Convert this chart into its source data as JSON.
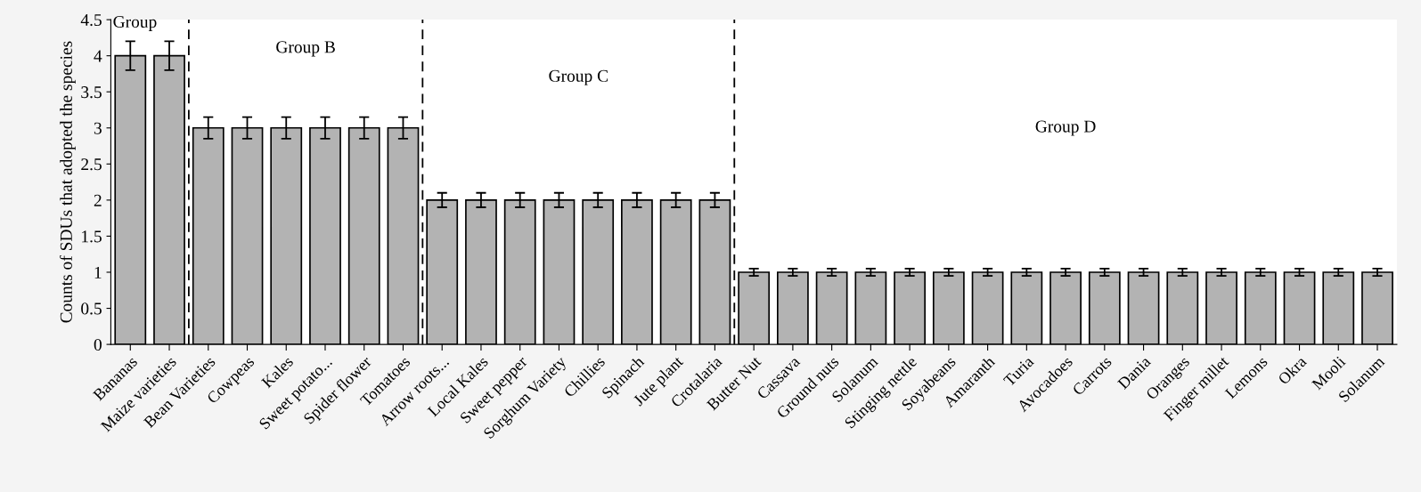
{
  "chart_data": {
    "type": "bar",
    "ylabel": "Counts of SDUs that adopted the species",
    "categories": [
      "Bananas",
      "Maize varieties",
      "Bean Varieties",
      "Cowpeas",
      "Kales",
      "Sweet potato...",
      "Spider flower",
      "Tomatoes",
      "Arrow roots...",
      "Local Kales",
      "Sweet pepper",
      "Sorghum Variety",
      "Chillies",
      "Spinach",
      "Jute plant",
      "Crotalaria",
      "Butter Nut",
      "Cassava",
      "Ground nuts",
      "Solanum",
      "Stinging nettle",
      "Soyabeans",
      "Amaranth",
      "Turia",
      "Avocadoes",
      "Carrots",
      "Dania",
      "Oranges",
      "Finger millet",
      "Lemons",
      "Okra",
      "Mooli",
      "Solanum"
    ],
    "values": [
      4,
      4,
      3,
      3,
      3,
      3,
      3,
      3,
      2,
      2,
      2,
      2,
      2,
      2,
      2,
      2,
      1,
      1,
      1,
      1,
      1,
      1,
      1,
      1,
      1,
      1,
      1,
      1,
      1,
      1,
      1,
      1,
      1
    ],
    "errors": [
      0.2,
      0.2,
      0.15,
      0.15,
      0.15,
      0.15,
      0.15,
      0.15,
      0.1,
      0.1,
      0.1,
      0.1,
      0.1,
      0.1,
      0.1,
      0.1,
      0.05,
      0.05,
      0.05,
      0.05,
      0.05,
      0.05,
      0.05,
      0.05,
      0.05,
      0.05,
      0.05,
      0.05,
      0.05,
      0.05,
      0.05,
      0.05,
      0.05
    ],
    "color": "#b3b3b3",
    "ylim": [
      0,
      4.5
    ],
    "yticks": [
      0,
      0.5,
      1,
      1.5,
      2,
      2.5,
      3,
      3.5,
      4,
      4.5
    ],
    "annotations": [
      "Group",
      "Group B",
      "Group C",
      "Group D"
    ],
    "grid": false
  }
}
